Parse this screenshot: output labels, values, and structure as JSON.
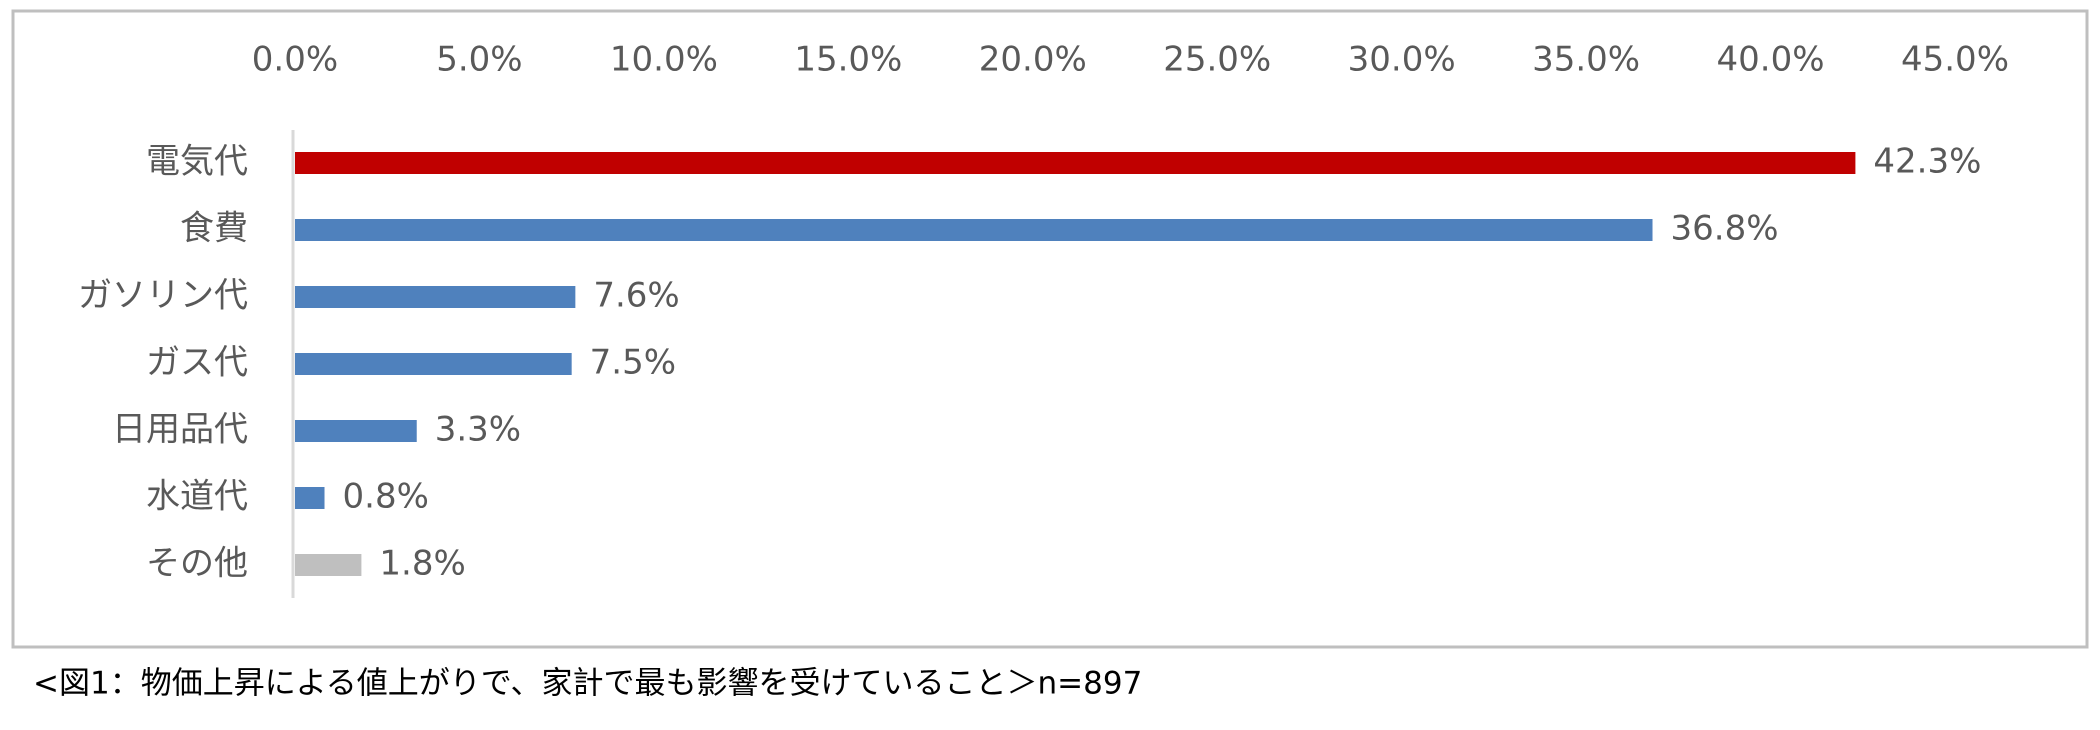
{
  "chart_data": {
    "type": "hbar",
    "categories": [
      "電気代",
      "食費",
      "ガソリン代",
      "ガス代",
      "日用品代",
      "水道代",
      "その他"
    ],
    "values": [
      42.3,
      36.8,
      7.6,
      7.5,
      3.3,
      0.8,
      1.8
    ],
    "value_labels": [
      "42.3%",
      "36.8%",
      "7.6%",
      "7.5%",
      "3.3%",
      "0.8%",
      "1.8%"
    ],
    "colors": [
      "#c00000",
      "#4f81bd",
      "#4f81bd",
      "#4f81bd",
      "#4f81bd",
      "#4f81bd",
      "#bfbfbf"
    ],
    "xlim": [
      0,
      45
    ],
    "xticks": [
      {
        "value": 0,
        "label": "0.0%"
      },
      {
        "value": 5,
        "label": "5.0%"
      },
      {
        "value": 10,
        "label": "10.0%"
      },
      {
        "value": 15,
        "label": "15.0%"
      },
      {
        "value": 20,
        "label": "20.0%"
      },
      {
        "value": 25,
        "label": "25.0%"
      },
      {
        "value": 30,
        "label": "30.0%"
      },
      {
        "value": 35,
        "label": "35.0%"
      },
      {
        "value": 40,
        "label": "40.0%"
      },
      {
        "value": 45,
        "label": "45.0%"
      }
    ],
    "caption": "<図1：物価上昇による値上がりで、家計で最も影響を受けていること＞n=897",
    "grid": false
  }
}
